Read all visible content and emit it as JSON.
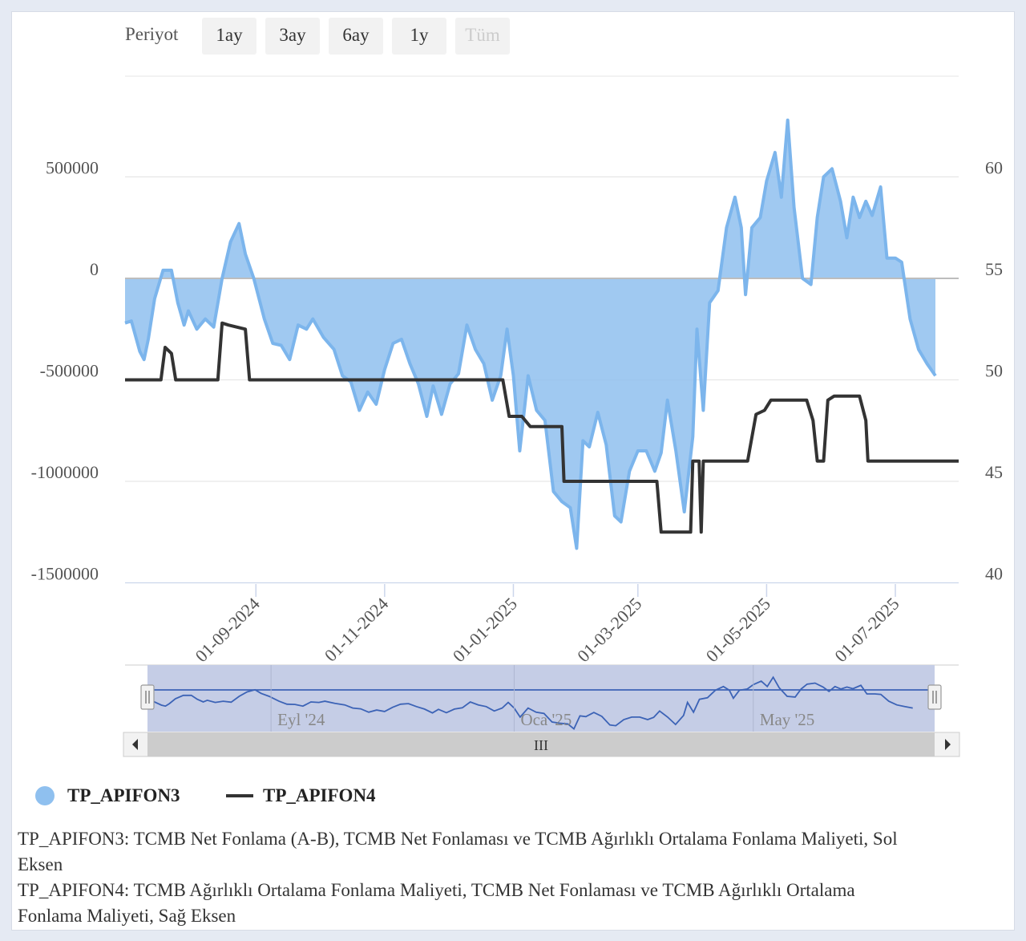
{
  "range_selector": {
    "label": "Periyot",
    "buttons": [
      {
        "label": "1ay",
        "enabled": true
      },
      {
        "label": "3ay",
        "enabled": true
      },
      {
        "label": "6ay",
        "enabled": true
      },
      {
        "label": "1y",
        "enabled": true
      },
      {
        "label": "Tüm",
        "enabled": false
      }
    ]
  },
  "navigator": {
    "labels": [
      "Eyl '24",
      "Oca '25",
      "May '25"
    ],
    "scrollbar_grip": "III",
    "left_arrow_icon": "triangle-left-icon",
    "right_arrow_icon": "triangle-right-icon"
  },
  "legend": [
    {
      "name": "TP_APIFON3",
      "icon": "circle-icon",
      "color": "#8fc0ef"
    },
    {
      "name": "TP_APIFON4",
      "icon": "line-icon",
      "color": "#333333"
    }
  ],
  "notes": [
    "TP_APIFON3: TCMB Net Fonlama (A-B), TCMB Net Fonlaması ve TCMB Ağırlıklı Ortalama Fonlama Maliyeti, Sol Eksen",
    "TP_APIFON4: TCMB Ağırlıklı Ortalama Fonlama Maliyeti, TCMB Net Fonlaması ve TCMB Ağırlıklı Ortalama Fonlama Maliyeti, Sağ Eksen"
  ],
  "chart_data": {
    "type": "area",
    "x_type": "datetime",
    "x_range": [
      "2024-07-01",
      "2025-07-31"
    ],
    "x_ticks": [
      "01-09-2024",
      "01-11-2024",
      "01-01-2025",
      "01-03-2025",
      "01-05-2025",
      "01-07-2025"
    ],
    "y_left": {
      "ticks": [
        500000,
        0,
        -500000,
        -1000000,
        -1500000
      ],
      "labels": [
        "500000",
        "0",
        "-500000",
        "-1000000",
        "-1500000"
      ],
      "range": [
        -1500000,
        1000000
      ]
    },
    "y_right": {
      "ticks": [
        60,
        55,
        50,
        45,
        40
      ],
      "labels": [
        "60",
        "55",
        "50",
        "45",
        "40"
      ],
      "range": [
        40,
        65
      ]
    },
    "grid": true,
    "legend_position": "bottom-left",
    "series": [
      {
        "name": "TP_APIFON3",
        "type": "area",
        "axis": "left",
        "color": "#8fc0ef",
        "line_color": "#7cb5ec",
        "points": [
          [
            "2024-07-01",
            -220000
          ],
          [
            "2024-07-04",
            -210000
          ],
          [
            "2024-07-08",
            -360000
          ],
          [
            "2024-07-10",
            -400000
          ],
          [
            "2024-07-12",
            -300000
          ],
          [
            "2024-07-15",
            -100000
          ],
          [
            "2024-07-19",
            40000
          ],
          [
            "2024-07-23",
            40000
          ],
          [
            "2024-07-26",
            -120000
          ],
          [
            "2024-07-29",
            -230000
          ],
          [
            "2024-07-31",
            -160000
          ],
          [
            "2024-08-04",
            -250000
          ],
          [
            "2024-08-08",
            -200000
          ],
          [
            "2024-08-12",
            -240000
          ],
          [
            "2024-08-16",
            0
          ],
          [
            "2024-08-20",
            180000
          ],
          [
            "2024-08-24",
            270000
          ],
          [
            "2024-08-27",
            120000
          ],
          [
            "2024-08-31",
            0
          ],
          [
            "2024-09-05",
            -200000
          ],
          [
            "2024-09-09",
            -320000
          ],
          [
            "2024-09-13",
            -330000
          ],
          [
            "2024-09-17",
            -400000
          ],
          [
            "2024-09-21",
            -230000
          ],
          [
            "2024-09-25",
            -250000
          ],
          [
            "2024-09-28",
            -200000
          ],
          [
            "2024-10-03",
            -290000
          ],
          [
            "2024-10-08",
            -350000
          ],
          [
            "2024-10-12",
            -480000
          ],
          [
            "2024-10-16",
            -510000
          ],
          [
            "2024-10-20",
            -650000
          ],
          [
            "2024-10-24",
            -560000
          ],
          [
            "2024-10-28",
            -620000
          ],
          [
            "2024-11-01",
            -450000
          ],
          [
            "2024-11-05",
            -320000
          ],
          [
            "2024-11-09",
            -300000
          ],
          [
            "2024-11-13",
            -420000
          ],
          [
            "2024-11-17",
            -520000
          ],
          [
            "2024-11-21",
            -680000
          ],
          [
            "2024-11-24",
            -530000
          ],
          [
            "2024-11-28",
            -670000
          ],
          [
            "2024-12-02",
            -520000
          ],
          [
            "2024-12-06",
            -470000
          ],
          [
            "2024-12-10",
            -230000
          ],
          [
            "2024-12-14",
            -350000
          ],
          [
            "2024-12-18",
            -420000
          ],
          [
            "2024-12-22",
            -600000
          ],
          [
            "2024-12-26",
            -480000
          ],
          [
            "2024-12-29",
            -250000
          ],
          [
            "2025-01-01",
            -480000
          ],
          [
            "2025-01-04",
            -850000
          ],
          [
            "2025-01-08",
            -480000
          ],
          [
            "2025-01-12",
            -650000
          ],
          [
            "2025-01-16",
            -700000
          ],
          [
            "2025-01-20",
            -1050000
          ],
          [
            "2025-01-24",
            -1100000
          ],
          [
            "2025-01-28",
            -1130000
          ],
          [
            "2025-01-31",
            -1330000
          ],
          [
            "2025-02-03",
            -800000
          ],
          [
            "2025-02-06",
            -830000
          ],
          [
            "2025-02-10",
            -660000
          ],
          [
            "2025-02-14",
            -820000
          ],
          [
            "2025-02-18",
            -1170000
          ],
          [
            "2025-02-21",
            -1200000
          ],
          [
            "2025-02-25",
            -950000
          ],
          [
            "2025-03-01",
            -850000
          ],
          [
            "2025-03-05",
            -850000
          ],
          [
            "2025-03-09",
            -950000
          ],
          [
            "2025-03-12",
            -860000
          ],
          [
            "2025-03-15",
            -600000
          ],
          [
            "2025-03-19",
            -850000
          ],
          [
            "2025-03-23",
            -1150000
          ],
          [
            "2025-03-27",
            -780000
          ],
          [
            "2025-03-29",
            -250000
          ],
          [
            "2025-04-01",
            -650000
          ],
          [
            "2025-04-04",
            -120000
          ],
          [
            "2025-04-08",
            -60000
          ],
          [
            "2025-04-12",
            250000
          ],
          [
            "2025-04-16",
            400000
          ],
          [
            "2025-04-19",
            250000
          ],
          [
            "2025-04-21",
            -80000
          ],
          [
            "2025-04-24",
            250000
          ],
          [
            "2025-04-28",
            300000
          ],
          [
            "2025-05-01",
            480000
          ],
          [
            "2025-05-05",
            620000
          ],
          [
            "2025-05-08",
            400000
          ],
          [
            "2025-05-11",
            780000
          ],
          [
            "2025-05-14",
            350000
          ],
          [
            "2025-05-18",
            0
          ],
          [
            "2025-05-22",
            -30000
          ],
          [
            "2025-05-25",
            300000
          ],
          [
            "2025-05-28",
            500000
          ],
          [
            "2025-06-01",
            540000
          ],
          [
            "2025-06-05",
            380000
          ],
          [
            "2025-06-08",
            200000
          ],
          [
            "2025-06-11",
            400000
          ],
          [
            "2025-06-14",
            300000
          ],
          [
            "2025-06-17",
            380000
          ],
          [
            "2025-06-20",
            310000
          ],
          [
            "2025-06-24",
            450000
          ],
          [
            "2025-06-27",
            100000
          ],
          [
            "2025-07-01",
            100000
          ],
          [
            "2025-07-04",
            80000
          ],
          [
            "2025-07-08",
            -200000
          ],
          [
            "2025-07-12",
            -350000
          ],
          [
            "2025-07-16",
            -420000
          ],
          [
            "2025-07-20",
            -480000
          ]
        ]
      },
      {
        "name": "TP_APIFON4",
        "type": "step",
        "axis": "right",
        "color": "#333333",
        "points": [
          [
            "2024-07-01",
            50
          ],
          [
            "2024-07-18",
            50
          ],
          [
            "2024-07-20",
            51.6
          ],
          [
            "2024-07-23",
            51.3
          ],
          [
            "2024-07-25",
            50
          ],
          [
            "2024-08-14",
            50
          ],
          [
            "2024-08-16",
            52.8
          ],
          [
            "2024-08-19",
            52.7
          ],
          [
            "2024-08-27",
            52.5
          ],
          [
            "2024-08-29",
            50
          ],
          [
            "2024-12-27",
            50
          ],
          [
            "2024-12-30",
            48.2
          ],
          [
            "2025-01-05",
            48.2
          ],
          [
            "2025-01-09",
            47.7
          ],
          [
            "2025-01-24",
            47.7
          ],
          [
            "2025-01-25",
            45
          ],
          [
            "2025-03-10",
            45
          ],
          [
            "2025-03-12",
            42.5
          ],
          [
            "2025-03-26",
            42.5
          ],
          [
            "2025-03-27",
            46
          ],
          [
            "2025-03-30",
            46
          ],
          [
            "2025-03-31",
            42.5
          ],
          [
            "2025-04-01",
            46
          ],
          [
            "2025-04-22",
            46
          ],
          [
            "2025-04-26",
            48.3
          ],
          [
            "2025-04-30",
            48.5
          ],
          [
            "2025-05-03",
            49
          ],
          [
            "2025-05-20",
            49
          ],
          [
            "2025-05-23",
            48
          ],
          [
            "2025-05-25",
            46
          ],
          [
            "2025-05-28",
            46
          ],
          [
            "2025-05-30",
            49
          ],
          [
            "2025-06-02",
            49.2
          ],
          [
            "2025-06-14",
            49.2
          ],
          [
            "2025-06-17",
            48
          ],
          [
            "2025-06-18",
            46
          ],
          [
            "2025-07-31",
            46
          ]
        ]
      }
    ]
  }
}
